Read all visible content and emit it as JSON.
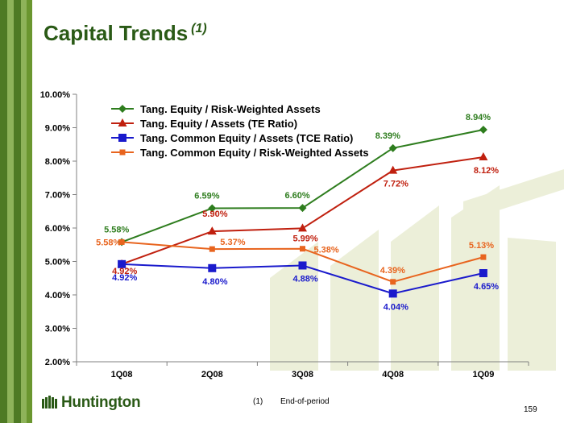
{
  "page": {
    "title": "Capital Trends",
    "title_note": "(1)",
    "footnote_number": "(1)",
    "footnote_text": "End-of-period",
    "logo_text": "Huntington",
    "page_number": "159"
  },
  "colors": {
    "sidebar_dark": "#4e7a24",
    "sidebar_light": "#8eb35a",
    "title": "#2a5a16",
    "watermark": "#ecefd9"
  },
  "chart_data": {
    "type": "line",
    "categories": [
      "1Q08",
      "2Q08",
      "3Q08",
      "4Q08",
      "1Q09"
    ],
    "ylim": [
      0.02,
      0.1
    ],
    "yticks": [
      0.02,
      0.03,
      0.04,
      0.05,
      0.06,
      0.07,
      0.08,
      0.09,
      0.1
    ],
    "ytick_labels": [
      "2.00%",
      "3.00%",
      "4.00%",
      "5.00%",
      "6.00%",
      "7.00%",
      "8.00%",
      "9.00%",
      "10.00%"
    ],
    "legend_position": "top-left",
    "grid": false,
    "series": [
      {
        "name": "Tang. Equity / Risk-Weighted Assets",
        "color": "#2e7d1e",
        "marker": "diamond",
        "values": [
          0.0558,
          0.0659,
          0.066,
          0.0839,
          0.0894
        ],
        "labels": [
          "5.58%",
          "6.59%",
          "6.60%",
          "8.39%",
          "8.94%"
        ]
      },
      {
        "name": "Tang. Equity / Assets (TE Ratio)",
        "color": "#c0200f",
        "marker": "triangle",
        "values": [
          0.0492,
          0.059,
          0.0599,
          0.0772,
          0.0812
        ],
        "labels": [
          "4.92%",
          "5.90%",
          "5.99%",
          "7.72%",
          "8.12%"
        ]
      },
      {
        "name": "Tang. Common Equity / Assets (TCE Ratio)",
        "color": "#1a1acc",
        "marker": "square",
        "values": [
          0.0492,
          0.048,
          0.0488,
          0.0404,
          0.0465
        ],
        "labels": [
          "4.92%",
          "4.80%",
          "4.88%",
          "4.04%",
          "4.65%"
        ]
      },
      {
        "name": "Tang. Common Equity / Risk-Weighted Assets",
        "color": "#e8641e",
        "marker": "small-square",
        "values": [
          0.0558,
          0.0537,
          0.0538,
          0.0439,
          0.0513
        ],
        "labels": [
          "5.58%",
          "5.37%",
          "5.38%",
          "4.39%",
          "5.13%"
        ]
      }
    ]
  }
}
